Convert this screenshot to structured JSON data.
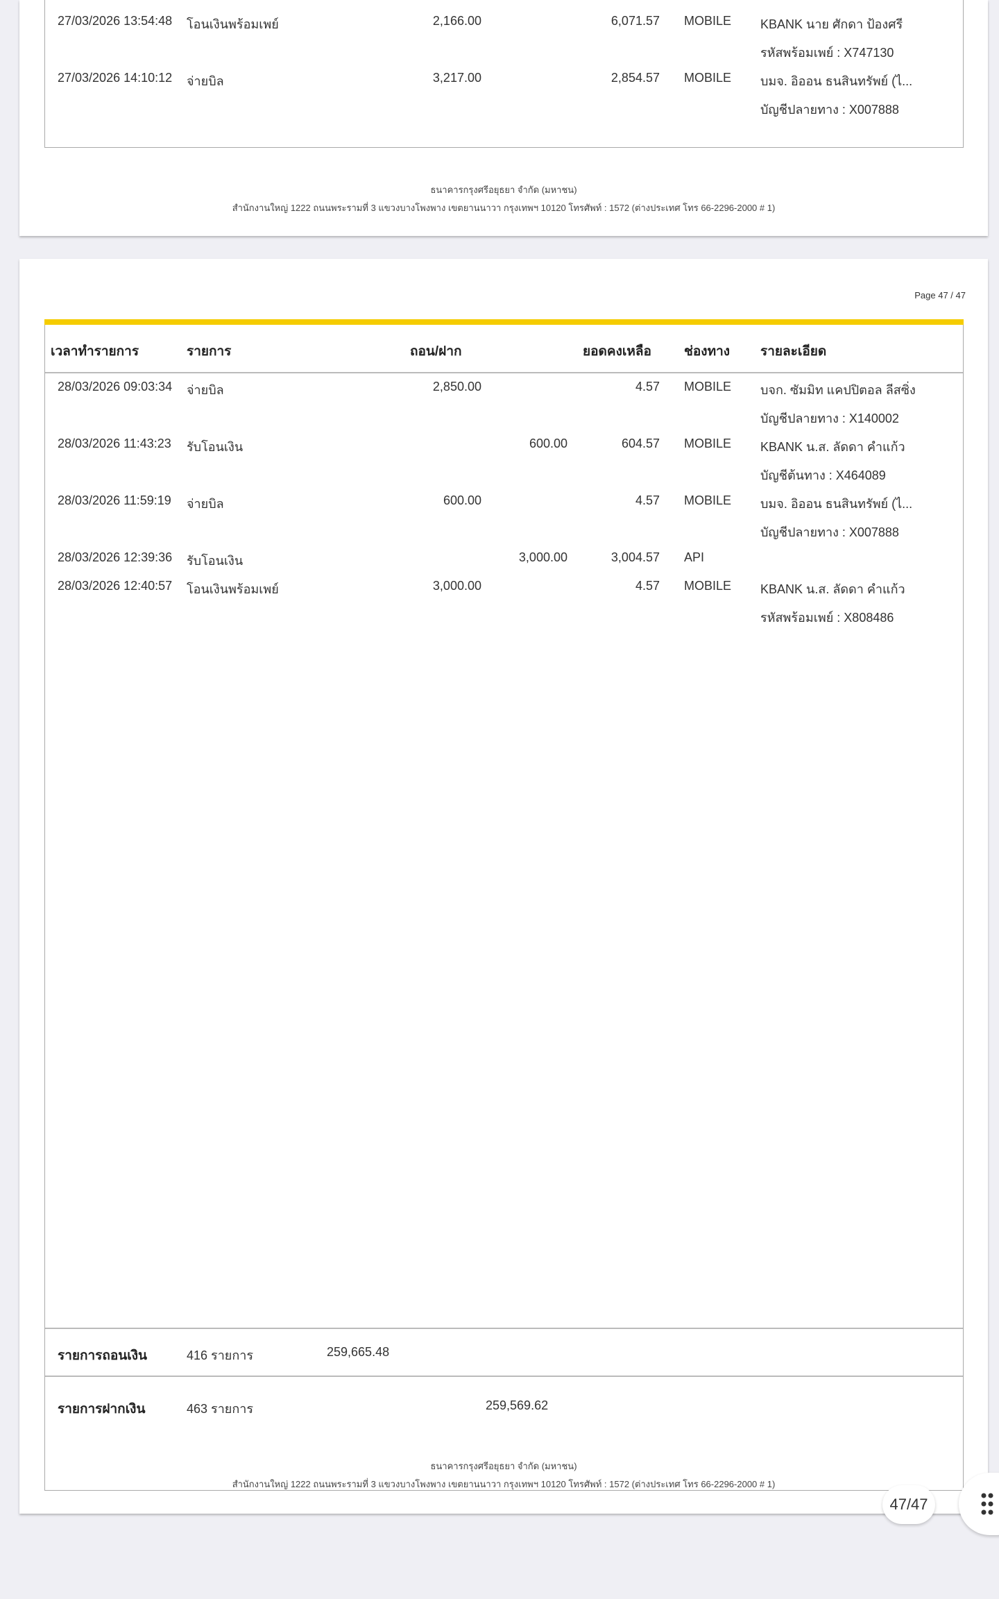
{
  "page1": {
    "rows": [
      {
        "time": "27/03/2026 13:54:48",
        "item": "โอนเงินพร้อมเพย์",
        "withdraw": "2,166.00",
        "deposit": "",
        "balance": "6,071.57",
        "channel": "MOBILE",
        "detail1": "KBANK นาย ศักดา ป้องศรี",
        "detail2": "รหัสพร้อมเพย์ : X747130"
      },
      {
        "time": "27/03/2026 14:10:12",
        "item": "จ่ายบิล",
        "withdraw": "3,217.00",
        "deposit": "",
        "balance": "2,854.57",
        "channel": "MOBILE",
        "detail1": "บมจ. อิออน ธนสินทรัพย์ (ไ...",
        "detail2": "บัญชีปลายทาง : X007888"
      }
    ],
    "footer_line1": "ธนาคารกรุงศรีอยุธยา จำกัด (มหาชน)",
    "footer_line2": "สำนักงานใหญ่ 1222 ถนนพระรามที่ 3 แขวงบางโพงพาง เขตยานนาวา กรุงเทพฯ 10120 โทรศัพท์ : 1572 (ต่างประเทศ โทร 66-2296-2000 # 1)"
  },
  "page2": {
    "page_label": "Page 47 / 47",
    "accent_color": "#f5cc00",
    "headers": {
      "time": "เวลาทำรายการ",
      "item": "รายการ",
      "amount": "ถอน/ฝาก",
      "balance": "ยอดคงเหลือ",
      "channel": "ช่องทาง",
      "detail": "รายละเอียด"
    },
    "rows": [
      {
        "time": "28/03/2026 09:03:34",
        "item": "จ่ายบิล",
        "withdraw": "2,850.00",
        "deposit": "",
        "balance": "4.57",
        "channel": "MOBILE",
        "detail1": "บจก. ซัมมิท แคปปิตอล ลีสซิ่ง",
        "detail2": "บัญชีปลายทาง : X140002"
      },
      {
        "time": "28/03/2026 11:43:23",
        "item": "รับโอนเงิน",
        "withdraw": "",
        "deposit": "600.00",
        "balance": "604.57",
        "channel": "MOBILE",
        "detail1": "KBANK น.ส. ลัดดา คำแก้ว",
        "detail2": "บัญชีต้นทาง : X464089"
      },
      {
        "time": "28/03/2026 11:59:19",
        "item": "จ่ายบิล",
        "withdraw": "600.00",
        "deposit": "",
        "balance": "4.57",
        "channel": "MOBILE",
        "detail1": "บมจ. อิออน ธนสินทรัพย์ (ไ...",
        "detail2": "บัญชีปลายทาง : X007888"
      },
      {
        "time": "28/03/2026 12:39:36",
        "item": "รับโอนเงิน",
        "withdraw": "",
        "deposit": "3,000.00",
        "balance": "3,004.57",
        "channel": "API",
        "detail1": "",
        "detail2": ""
      },
      {
        "time": "28/03/2026 12:40:57",
        "item": "โอนเงินพร้อมเพย์",
        "withdraw": "3,000.00",
        "deposit": "",
        "balance": "4.57",
        "channel": "MOBILE",
        "detail1": "KBANK น.ส. ลัดดา คำแก้ว",
        "detail2": "รหัสพร้อมเพย์ : X808486"
      }
    ],
    "summary": {
      "withdraw_label": "รายการถอนเงิน",
      "withdraw_count": "416 รายการ",
      "withdraw_total": "259,665.48",
      "deposit_label": "รายการฝากเงิน",
      "deposit_count": "463 รายการ",
      "deposit_total": "259,569.62"
    },
    "footer_line1": "ธนาคารกรุงศรีอยุธยา จำกัด (มหาชน)",
    "footer_line2": "สำนักงานใหญ่ 1222 ถนนพระรามที่ 3 แขวงบางโพงพาง เขตยานนาวา กรุงเทพฯ 10120 โทรศัพท์ : 1572 (ต่างประเทศ โทร 66-2296-2000 # 1)"
  },
  "viewer": {
    "page_indicator": "47/47",
    "menu_icon": "grip-dots-icon"
  }
}
